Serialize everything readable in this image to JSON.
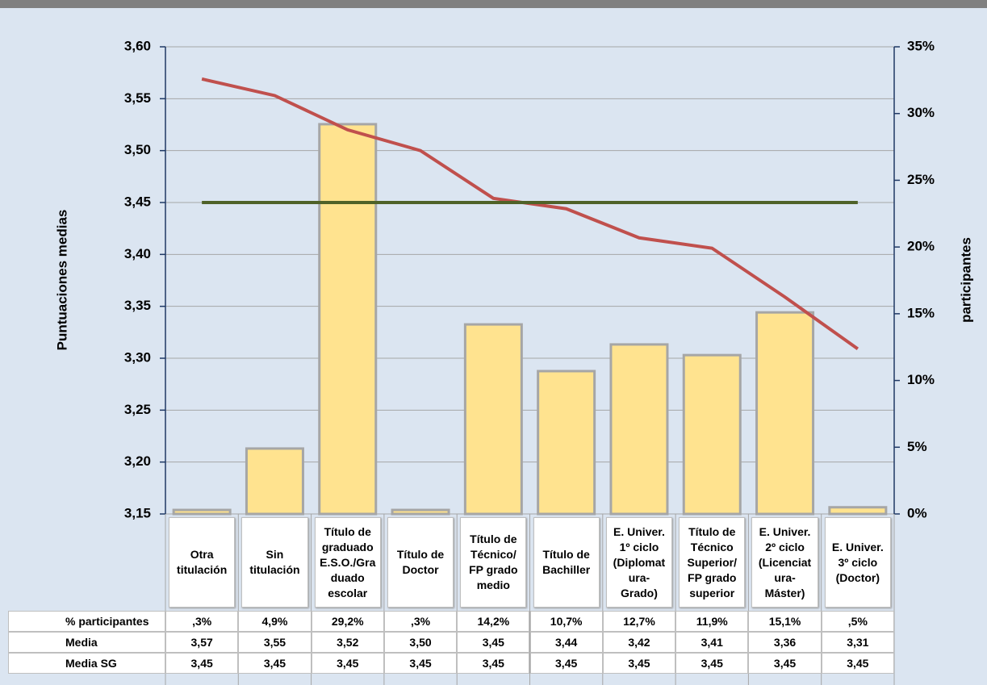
{
  "chart_data": {
    "type": "bar_line_table",
    "ylabel": "Puntuaciones medias",
    "y2label": "participantes",
    "categories": [
      "Otra\ntitulación",
      "Sin\ntitulación",
      "Título de\ngraduado\nE.S.O./Gra\nduado\nescolar",
      "Título de\nDoctor",
      "Título de\nTécnico/\nFP grado\nmedio",
      "Título de\nBachiller",
      "E. Univer.\n1º ciclo\n(Diplomat\nura-\nGrado)",
      "Título de\nTécnico\nSuperior/\nFP grado\nsuperior",
      "E. Univer.\n2º ciclo\n(Licenciat\nura-\nMáster)",
      "E. Univer.\n3º ciclo\n(Doctor)"
    ],
    "ylim": [
      3.15,
      3.6
    ],
    "yticks": [
      {
        "value": 3.15,
        "label": "3,15"
      },
      {
        "value": 3.2,
        "label": "3,20"
      },
      {
        "value": 3.25,
        "label": "3,25"
      },
      {
        "value": 3.3,
        "label": "3,30"
      },
      {
        "value": 3.35,
        "label": "3,35"
      },
      {
        "value": 3.4,
        "label": "3,40"
      },
      {
        "value": 3.45,
        "label": "3,45"
      },
      {
        "value": 3.5,
        "label": "3,50"
      },
      {
        "value": 3.55,
        "label": "3,55"
      },
      {
        "value": 3.6,
        "label": "3,60"
      }
    ],
    "y2lim": [
      0,
      35
    ],
    "y2ticks": [
      {
        "value": 0,
        "label": "0%"
      },
      {
        "value": 5,
        "label": "5%"
      },
      {
        "value": 10,
        "label": "10%"
      },
      {
        "value": 15,
        "label": "15%"
      },
      {
        "value": 20,
        "label": "20%"
      },
      {
        "value": 25,
        "label": "25%"
      },
      {
        "value": 30,
        "label": "30%"
      },
      {
        "value": 35,
        "label": "35%"
      }
    ],
    "grid": true,
    "series": [
      {
        "name": "% participantes",
        "type": "bar",
        "axis": "y2",
        "color": "#ffe38f",
        "values": [
          0.3,
          4.9,
          29.2,
          0.3,
          14.2,
          10.7,
          12.7,
          11.9,
          15.1,
          0.5
        ],
        "value_labels": [
          ",3%",
          "4,9%",
          "29,2%",
          ",3%",
          "14,2%",
          "10,7%",
          "12,7%",
          "11,9%",
          "15,1%",
          ",5%"
        ]
      },
      {
        "name": "Media",
        "type": "line",
        "color": "#c0504d",
        "values": [
          3.569,
          3.553,
          3.52,
          3.5,
          3.454,
          3.444,
          3.416,
          3.406,
          3.359,
          3.309
        ],
        "value_labels": [
          "3,57",
          "3,55",
          "3,52",
          "3,50",
          "3,45",
          "3,44",
          "3,42",
          "3,41",
          "3,36",
          "3,31"
        ]
      },
      {
        "name": "Media SG",
        "type": "line",
        "color": "#4f6228",
        "values": [
          3.45,
          3.45,
          3.45,
          3.45,
          3.45,
          3.45,
          3.45,
          3.45,
          3.45,
          3.45
        ],
        "value_labels": [
          "3,45",
          "3,45",
          "3,45",
          "3,45",
          "3,45",
          "3,45",
          "3,45",
          "3,45",
          "3,45",
          "3,45"
        ]
      }
    ]
  }
}
